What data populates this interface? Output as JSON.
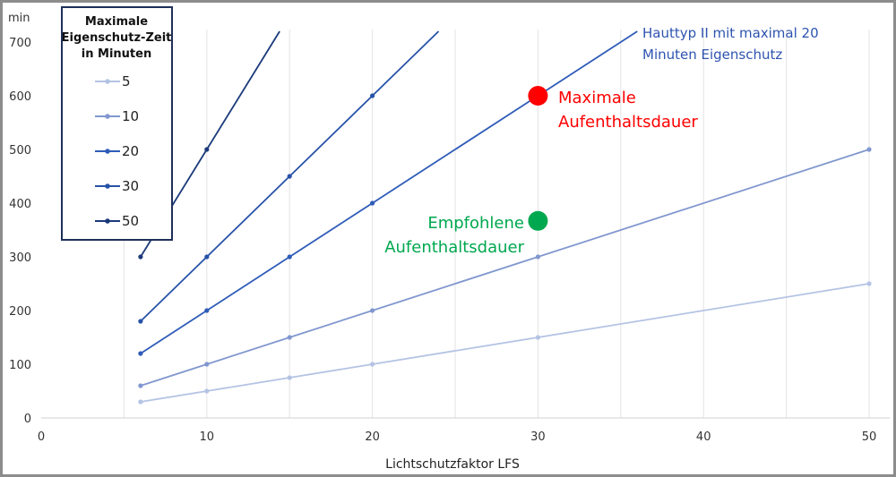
{
  "chart_data": {
    "type": "line",
    "xlabel": "Lichtschutzfaktor LFS",
    "ylabel": "min",
    "xlim": [
      0,
      52
    ],
    "ylim": [
      0,
      700
    ],
    "x_ticks": [
      0,
      10,
      20,
      30,
      40,
      50
    ],
    "y_ticks": [
      0,
      100,
      200,
      300,
      400,
      500,
      600,
      700
    ],
    "grid": "vertical",
    "legend": {
      "title_lines": [
        "Maximale",
        "Eigenschutz-Zeit",
        "in Minuten"
      ],
      "placement": "top-left"
    },
    "series": [
      {
        "name": "5",
        "color": "#b4c3e3",
        "x": [
          6,
          10,
          15,
          20,
          30,
          50
        ],
        "y": [
          30,
          50,
          75,
          100,
          150,
          250
        ]
      },
      {
        "name": "10",
        "color": "#8197cf",
        "x": [
          6,
          10,
          15,
          20,
          30,
          50
        ],
        "y": [
          60,
          100,
          150,
          200,
          300,
          500
        ]
      },
      {
        "name": "20",
        "color": "#2f5cb8",
        "x": [
          6,
          10,
          15,
          20,
          30,
          36
        ],
        "y": [
          120,
          200,
          300,
          400,
          600,
          720
        ]
      },
      {
        "name": "30",
        "color": "#2752a8",
        "x": [
          6,
          10,
          15,
          20,
          24
        ],
        "y": [
          180,
          300,
          450,
          600,
          720
        ]
      },
      {
        "name": "50",
        "color": "#1b3a7a",
        "x": [
          6,
          10,
          14.4
        ],
        "y": [
          300,
          500,
          720
        ]
      }
    ],
    "annotations": [
      {
        "id": "maximale",
        "lines": [
          "Maximale",
          "Aufenthaltsdauer"
        ],
        "x": 30,
        "y": 600,
        "color": "#ff0000"
      },
      {
        "id": "empfohlene",
        "lines": [
          "Empfohlene",
          "Aufenthaltsdauer"
        ],
        "x": 30,
        "y": 367,
        "color": "#00a84f"
      },
      {
        "id": "hauttyp",
        "lines": [
          "Hauttyp II mit maximal 20",
          "Minuten Eigenschutz"
        ],
        "color": "#2e54b0"
      }
    ]
  }
}
